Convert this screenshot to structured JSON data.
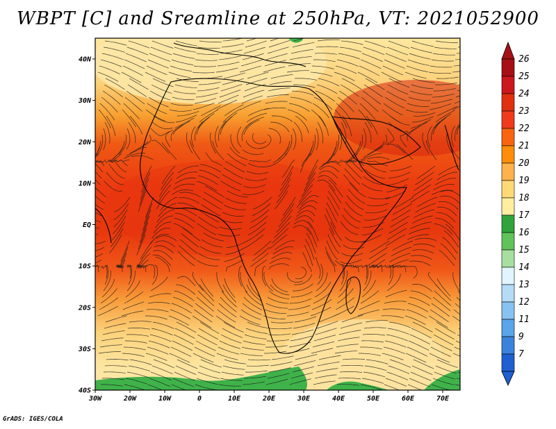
{
  "title": "WBPT [C] and Sreamline at 250hPa, VT: 2021052900",
  "footer": "GrADS: IGES/COLA",
  "map": {
    "lon_ticks": [
      "30W",
      "20W",
      "10W",
      "0",
      "10E",
      "20E",
      "30E",
      "40E",
      "50E",
      "60E",
      "70E"
    ],
    "lat_ticks": [
      "40N",
      "30N",
      "20N",
      "10N",
      "EQ",
      "10S",
      "20S",
      "30S",
      "40S"
    ]
  },
  "colorbar": {
    "levels": [
      "26",
      "25",
      "24",
      "23",
      "22",
      "21",
      "20",
      "19",
      "18",
      "17",
      "16",
      "15",
      "14",
      "13",
      "12",
      "11",
      "9",
      "7"
    ],
    "colors": [
      "#a50f15",
      "#cb181d",
      "#e03010",
      "#ef3b1c",
      "#f86410",
      "#fd8d0a",
      "#feb24c",
      "#fed976",
      "#ffeda0",
      "#31a33c",
      "#5fc35a",
      "#a8dea0",
      "#e0f5ff",
      "#b5dbf7",
      "#88c2f0",
      "#5aa4e8",
      "#3b82dc",
      "#1f5fd0"
    ]
  }
}
